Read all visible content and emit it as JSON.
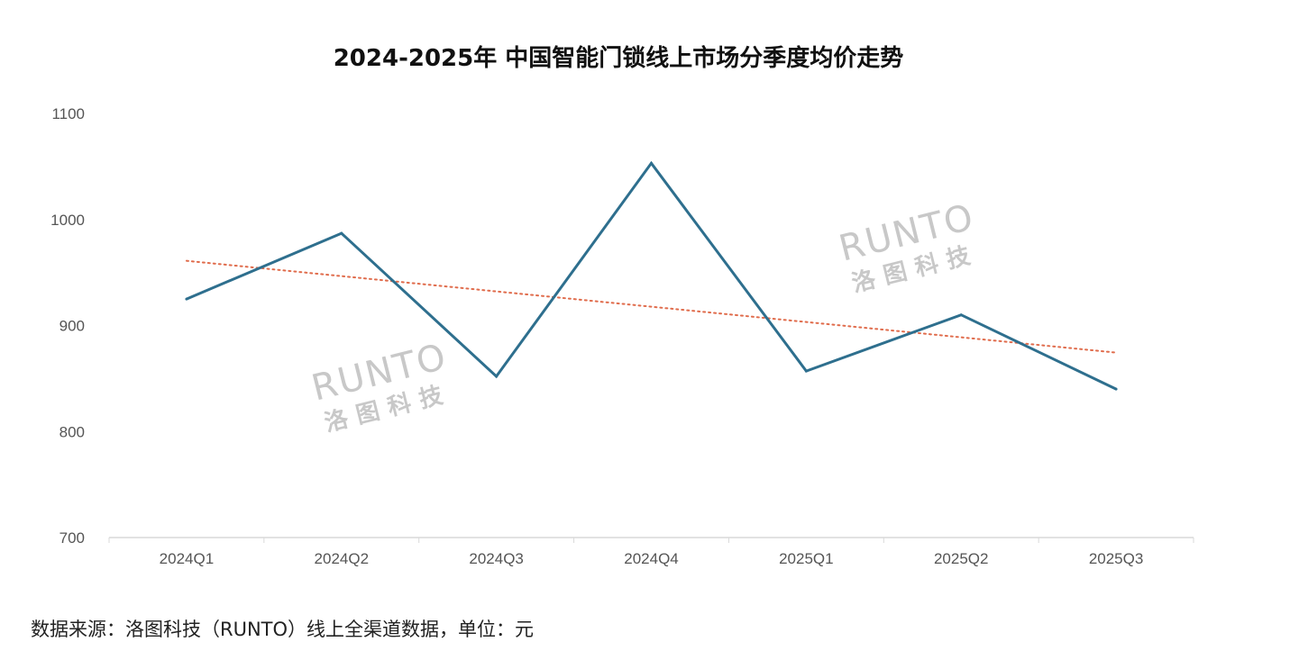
{
  "chart_data": {
    "type": "line",
    "title": "2024-2025年 中国智能门锁线上市场分季度均价走势",
    "categories": [
      "2024Q1",
      "2024Q2",
      "2024Q3",
      "2024Q4",
      "2025Q1",
      "2025Q2",
      "2025Q3"
    ],
    "series": [
      {
        "values": [
          925,
          987,
          852,
          1053,
          857,
          910,
          840
        ],
        "color": "#2e6f8e"
      }
    ],
    "trendline": {
      "type": "linear",
      "color": "#e06c4c",
      "style": "dotted"
    },
    "xlabel": "",
    "ylabel": "",
    "ylim": [
      700,
      1100
    ],
    "yticks": [
      "700",
      "800",
      "900",
      "1000",
      "1100"
    ],
    "grid": false,
    "legend": "none"
  },
  "watermark": {
    "brand": "RUNTO",
    "name_cn": "洛图科技"
  },
  "source_note": "数据来源：洛图科技（RUNTO）线上全渠道数据，单位：元"
}
